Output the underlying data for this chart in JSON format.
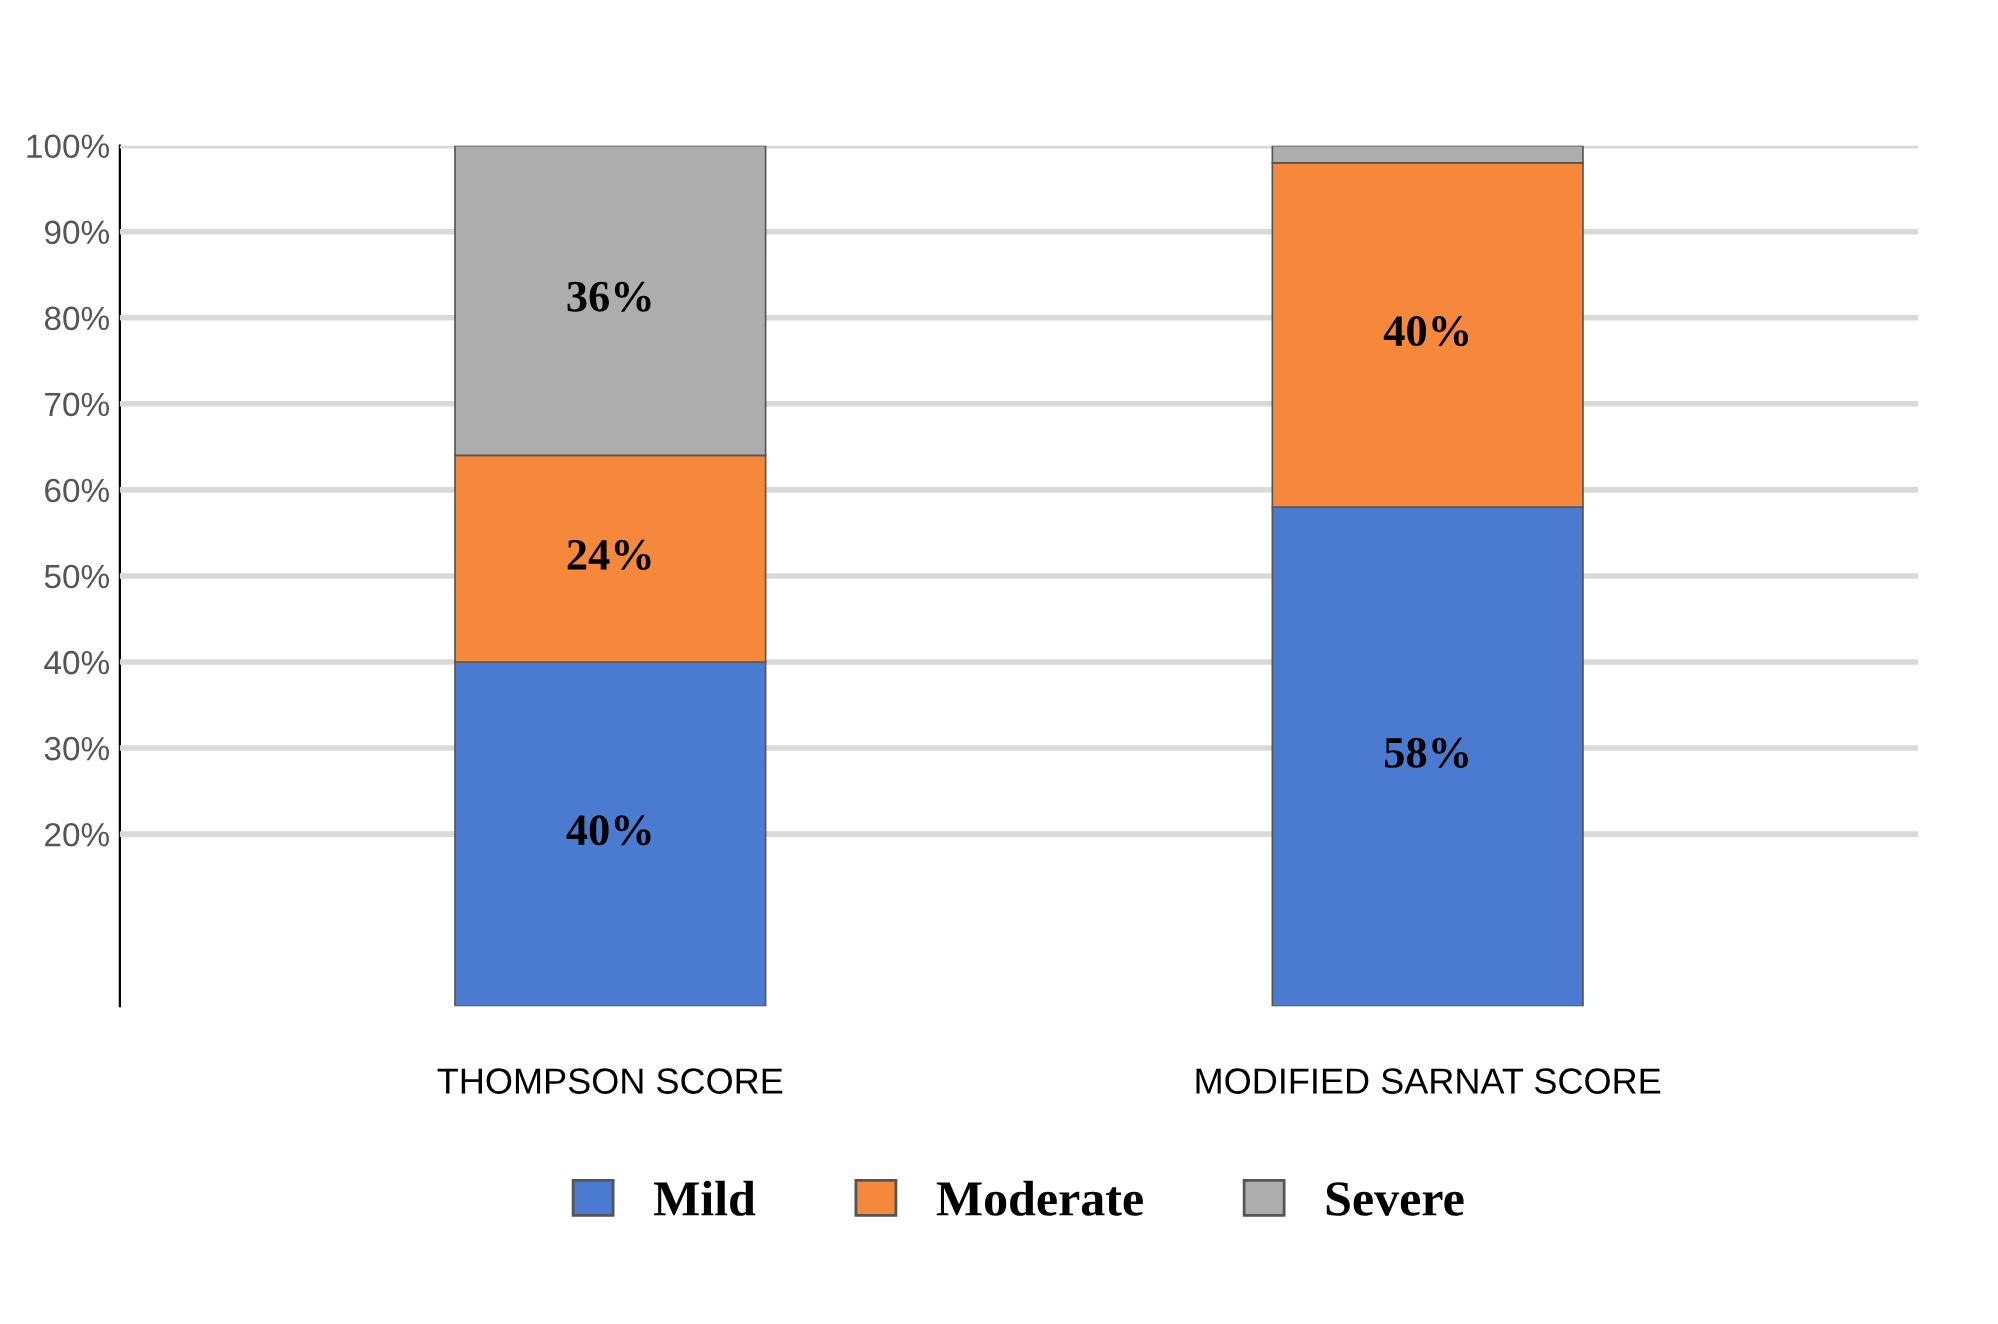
{
  "chart_data": {
    "type": "bar",
    "stacked": true,
    "categories": [
      "THOMPSON SCORE",
      "MODIFIED SARNAT SCORE"
    ],
    "series": [
      {
        "name": "Mild",
        "color": "#4a7bd0",
        "values": [
          40,
          58
        ],
        "value_labels": [
          "40%",
          "58%"
        ]
      },
      {
        "name": "Moderate",
        "color": "#f5883a",
        "values": [
          24,
          40
        ],
        "value_labels": [
          "24%",
          "40%"
        ]
      },
      {
        "name": "Severe",
        "color": "#adadad",
        "values": [
          36,
          2
        ],
        "value_labels": [
          "36%",
          null
        ]
      }
    ],
    "ylim": [
      0,
      100
    ],
    "yticks": [
      {
        "value": 20,
        "label": "20%"
      },
      {
        "value": 30,
        "label": "30%"
      },
      {
        "value": 40,
        "label": "40%"
      },
      {
        "value": 50,
        "label": "50%"
      },
      {
        "value": 60,
        "label": "60%"
      },
      {
        "value": 70,
        "label": "70%"
      },
      {
        "value": 80,
        "label": "80%"
      },
      {
        "value": 90,
        "label": "90%"
      },
      {
        "value": 100,
        "label": "100%"
      }
    ],
    "grid": "y",
    "legend": "bottom"
  }
}
